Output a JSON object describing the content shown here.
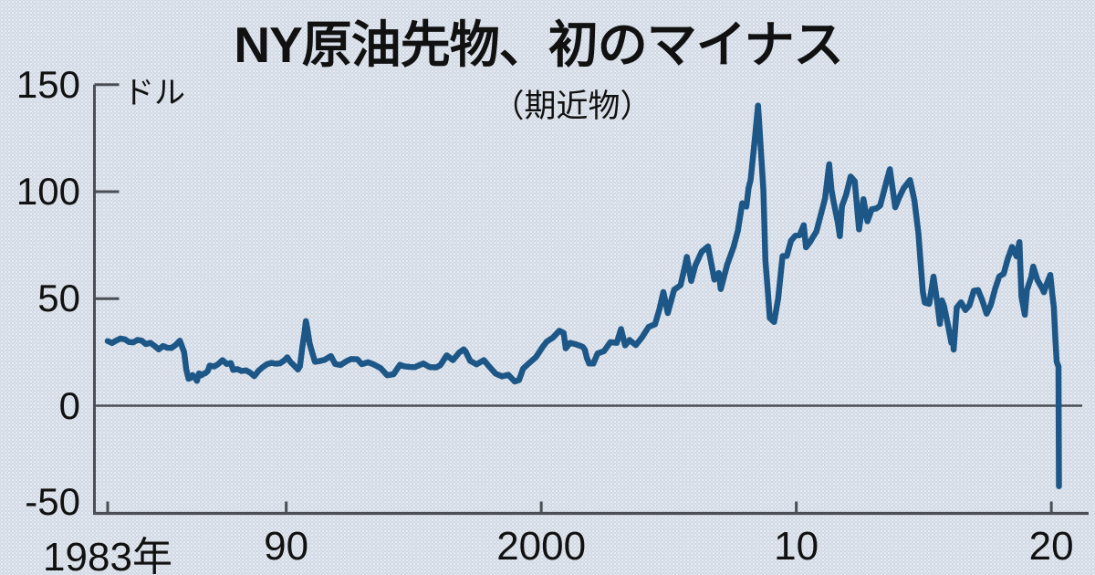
{
  "page": {
    "background_color": "#ccd5e2",
    "text_color": "#111111"
  },
  "chart_data": {
    "type": "line",
    "title": "NY原油先物、初のマイナス",
    "subtitle": "（期近物）",
    "grid": "zero-baseline-only",
    "legend": "none",
    "line_color": "#1d5787",
    "axis_color": "#4b4f55",
    "y_axis": {
      "unit_label": "ドル",
      "range": [
        -50,
        150
      ],
      "ticks": [
        {
          "value": 150,
          "label": "150",
          "tick_mark": true
        },
        {
          "value": 100,
          "label": "100",
          "tick_mark": true
        },
        {
          "value": 50,
          "label": "50",
          "tick_mark": true
        },
        {
          "value": 0,
          "label": "0",
          "tick_mark": false
        },
        {
          "value": -50,
          "label": "-50",
          "tick_mark": false
        }
      ]
    },
    "x_axis": {
      "range": [
        1983,
        2021.6
      ],
      "ticks": [
        {
          "year": 1983,
          "label": "1983年"
        },
        {
          "year": 1990,
          "label": "90"
        },
        {
          "year": 2000,
          "label": "2000"
        },
        {
          "year": 2010,
          "label": "10"
        },
        {
          "year": 2020,
          "label": "20"
        }
      ]
    },
    "series": [
      {
        "unit": "dollars per barrel",
        "points": [
          [
            1983.0,
            30.2
          ],
          [
            1983.17,
            29.3
          ],
          [
            1983.33,
            30.4
          ],
          [
            1983.5,
            31.4
          ],
          [
            1983.67,
            31.0
          ],
          [
            1983.83,
            29.8
          ],
          [
            1984.0,
            29.6
          ],
          [
            1984.17,
            30.7
          ],
          [
            1984.33,
            30.4
          ],
          [
            1984.5,
            28.8
          ],
          [
            1984.67,
            29.4
          ],
          [
            1984.83,
            28.0
          ],
          [
            1985.0,
            26.3
          ],
          [
            1985.17,
            27.9
          ],
          [
            1985.33,
            27.1
          ],
          [
            1985.5,
            27.0
          ],
          [
            1985.67,
            28.4
          ],
          [
            1985.83,
            30.4
          ],
          [
            1986.0,
            25.0
          ],
          [
            1986.08,
            17.0
          ],
          [
            1986.17,
            12.6
          ],
          [
            1986.25,
            12.9
          ],
          [
            1986.33,
            14.3
          ],
          [
            1986.42,
            13.2
          ],
          [
            1986.5,
            11.6
          ],
          [
            1986.58,
            15.1
          ],
          [
            1986.67,
            14.2
          ],
          [
            1986.75,
            14.9
          ],
          [
            1986.83,
            15.2
          ],
          [
            1986.92,
            16.1
          ],
          [
            1987.0,
            18.7
          ],
          [
            1987.17,
            18.3
          ],
          [
            1987.33,
            19.4
          ],
          [
            1987.5,
            21.3
          ],
          [
            1987.67,
            19.5
          ],
          [
            1987.83,
            19.9
          ],
          [
            1987.92,
            16.7
          ],
          [
            1988.08,
            17.1
          ],
          [
            1988.25,
            16.2
          ],
          [
            1988.42,
            16.5
          ],
          [
            1988.58,
            15.5
          ],
          [
            1988.75,
            13.8
          ],
          [
            1988.92,
            16.4
          ],
          [
            1989.08,
            18.0
          ],
          [
            1989.25,
            19.4
          ],
          [
            1989.42,
            20.0
          ],
          [
            1989.58,
            19.6
          ],
          [
            1989.75,
            19.8
          ],
          [
            1989.92,
            21.1
          ],
          [
            1990.04,
            22.6
          ],
          [
            1990.17,
            20.4
          ],
          [
            1990.33,
            18.5
          ],
          [
            1990.46,
            16.9
          ],
          [
            1990.54,
            18.4
          ],
          [
            1990.63,
            27.3
          ],
          [
            1990.71,
            33.5
          ],
          [
            1990.77,
            39.5
          ],
          [
            1990.83,
            35.9
          ],
          [
            1990.92,
            28.9
          ],
          [
            1991.04,
            24.0
          ],
          [
            1991.13,
            20.5
          ],
          [
            1991.29,
            20.8
          ],
          [
            1991.5,
            21.4
          ],
          [
            1991.75,
            23.2
          ],
          [
            1991.92,
            19.5
          ],
          [
            1992.13,
            19.0
          ],
          [
            1992.38,
            20.9
          ],
          [
            1992.54,
            21.8
          ],
          [
            1992.79,
            21.7
          ],
          [
            1992.96,
            19.4
          ],
          [
            1993.21,
            20.3
          ],
          [
            1993.46,
            19.1
          ],
          [
            1993.71,
            17.5
          ],
          [
            1993.96,
            14.2
          ],
          [
            1994.21,
            14.7
          ],
          [
            1994.46,
            19.1
          ],
          [
            1994.63,
            18.4
          ],
          [
            1994.88,
            18.1
          ],
          [
            1995.04,
            18.0
          ],
          [
            1995.38,
            19.7
          ],
          [
            1995.63,
            18.0
          ],
          [
            1995.88,
            17.9
          ],
          [
            1996.04,
            18.9
          ],
          [
            1996.29,
            23.5
          ],
          [
            1996.54,
            21.3
          ],
          [
            1996.79,
            24.9
          ],
          [
            1996.96,
            26.3
          ],
          [
            1997.04,
            25.2
          ],
          [
            1997.21,
            21.0
          ],
          [
            1997.46,
            19.3
          ],
          [
            1997.75,
            21.3
          ],
          [
            1997.96,
            18.3
          ],
          [
            1998.21,
            15.0
          ],
          [
            1998.46,
            13.7
          ],
          [
            1998.71,
            14.4
          ],
          [
            1998.96,
            11.3
          ],
          [
            1999.13,
            12.0
          ],
          [
            1999.29,
            17.3
          ],
          [
            1999.54,
            20.1
          ],
          [
            1999.79,
            22.7
          ],
          [
            2000.04,
            27.2
          ],
          [
            2000.21,
            29.9
          ],
          [
            2000.46,
            31.8
          ],
          [
            2000.71,
            35.0
          ],
          [
            2000.88,
            34.0
          ],
          [
            2000.96,
            26.8
          ],
          [
            2001.13,
            29.4
          ],
          [
            2001.38,
            28.6
          ],
          [
            2001.63,
            27.5
          ],
          [
            2001.71,
            26.2
          ],
          [
            2001.79,
            22.2
          ],
          [
            2001.88,
            19.7
          ],
          [
            2002.04,
            19.7
          ],
          [
            2002.21,
            24.4
          ],
          [
            2002.46,
            25.5
          ],
          [
            2002.71,
            29.7
          ],
          [
            2002.96,
            29.4
          ],
          [
            2003.13,
            35.8
          ],
          [
            2003.29,
            28.2
          ],
          [
            2003.46,
            30.7
          ],
          [
            2003.71,
            28.3
          ],
          [
            2003.96,
            32.1
          ],
          [
            2004.21,
            36.8
          ],
          [
            2004.46,
            38.0
          ],
          [
            2004.63,
            45.0
          ],
          [
            2004.79,
            53.1
          ],
          [
            2004.96,
            43.3
          ],
          [
            2005.21,
            54.2
          ],
          [
            2005.46,
            56.3
          ],
          [
            2005.63,
            65.0
          ],
          [
            2005.71,
            69.5
          ],
          [
            2005.88,
            58.3
          ],
          [
            2006.04,
            65.5
          ],
          [
            2006.29,
            72.0
          ],
          [
            2006.54,
            74.4
          ],
          [
            2006.79,
            58.9
          ],
          [
            2006.96,
            62.0
          ],
          [
            2007.04,
            54.5
          ],
          [
            2007.29,
            65.9
          ],
          [
            2007.54,
            74.1
          ],
          [
            2007.71,
            81.7
          ],
          [
            2007.88,
            94.6
          ],
          [
            2008.04,
            93.0
          ],
          [
            2008.13,
            101.8
          ],
          [
            2008.21,
            105.5
          ],
          [
            2008.38,
            125.4
          ],
          [
            2008.5,
            140.2
          ],
          [
            2008.54,
            133.4
          ],
          [
            2008.71,
            100.6
          ],
          [
            2008.79,
            67.8
          ],
          [
            2008.88,
            54.4
          ],
          [
            2008.96,
            41.0
          ],
          [
            2009.13,
            39.1
          ],
          [
            2009.29,
            50.1
          ],
          [
            2009.46,
            69.9
          ],
          [
            2009.63,
            70.0
          ],
          [
            2009.79,
            77.0
          ],
          [
            2009.96,
            79.4
          ],
          [
            2010.13,
            79.7
          ],
          [
            2010.29,
            84.3
          ],
          [
            2010.38,
            74.0
          ],
          [
            2010.54,
            76.5
          ],
          [
            2010.79,
            81.4
          ],
          [
            2010.96,
            89.2
          ],
          [
            2011.13,
            96.9
          ],
          [
            2011.29,
            112.8
          ],
          [
            2011.38,
            100.9
          ],
          [
            2011.46,
            95.4
          ],
          [
            2011.63,
            85.5
          ],
          [
            2011.71,
            79.2
          ],
          [
            2011.79,
            93.2
          ],
          [
            2011.96,
            98.8
          ],
          [
            2012.13,
            107.1
          ],
          [
            2012.29,
            104.9
          ],
          [
            2012.46,
            82.4
          ],
          [
            2012.63,
            96.5
          ],
          [
            2012.79,
            86.2
          ],
          [
            2012.96,
            91.8
          ],
          [
            2013.13,
            92.1
          ],
          [
            2013.29,
            93.5
          ],
          [
            2013.54,
            105.0
          ],
          [
            2013.67,
            110.5
          ],
          [
            2013.88,
            92.7
          ],
          [
            2014.04,
            97.5
          ],
          [
            2014.21,
            101.6
          ],
          [
            2014.46,
            105.4
          ],
          [
            2014.63,
            95.9
          ],
          [
            2014.79,
            80.5
          ],
          [
            2014.88,
            66.2
          ],
          [
            2014.96,
            53.3
          ],
          [
            2015.04,
            48.2
          ],
          [
            2015.21,
            47.6
          ],
          [
            2015.38,
            60.3
          ],
          [
            2015.54,
            47.1
          ],
          [
            2015.63,
            38.2
          ],
          [
            2015.71,
            49.2
          ],
          [
            2015.79,
            46.6
          ],
          [
            2015.96,
            37.0
          ],
          [
            2016.08,
            29.4
          ],
          [
            2016.13,
            33.7
          ],
          [
            2016.17,
            26.2
          ],
          [
            2016.29,
            45.9
          ],
          [
            2016.46,
            48.3
          ],
          [
            2016.63,
            44.7
          ],
          [
            2016.79,
            46.9
          ],
          [
            2016.96,
            53.7
          ],
          [
            2017.13,
            54.0
          ],
          [
            2017.29,
            49.3
          ],
          [
            2017.46,
            43.0
          ],
          [
            2017.63,
            47.2
          ],
          [
            2017.79,
            54.4
          ],
          [
            2017.96,
            60.4
          ],
          [
            2018.13,
            61.6
          ],
          [
            2018.29,
            68.6
          ],
          [
            2018.46,
            74.2
          ],
          [
            2018.63,
            69.8
          ],
          [
            2018.75,
            76.4
          ],
          [
            2018.83,
            50.9
          ],
          [
            2018.96,
            42.5
          ],
          [
            2019.04,
            53.8
          ],
          [
            2019.21,
            60.1
          ],
          [
            2019.29,
            65.0
          ],
          [
            2019.46,
            58.5
          ],
          [
            2019.63,
            55.1
          ],
          [
            2019.71,
            53.0
          ],
          [
            2019.79,
            56.0
          ],
          [
            2019.96,
            61.1
          ],
          [
            2020.04,
            51.6
          ],
          [
            2020.1,
            46.0
          ],
          [
            2020.16,
            31.0
          ],
          [
            2020.21,
            20.5
          ],
          [
            2020.28,
            18.3
          ],
          [
            2020.3,
            -37.6
          ]
        ]
      }
    ]
  }
}
